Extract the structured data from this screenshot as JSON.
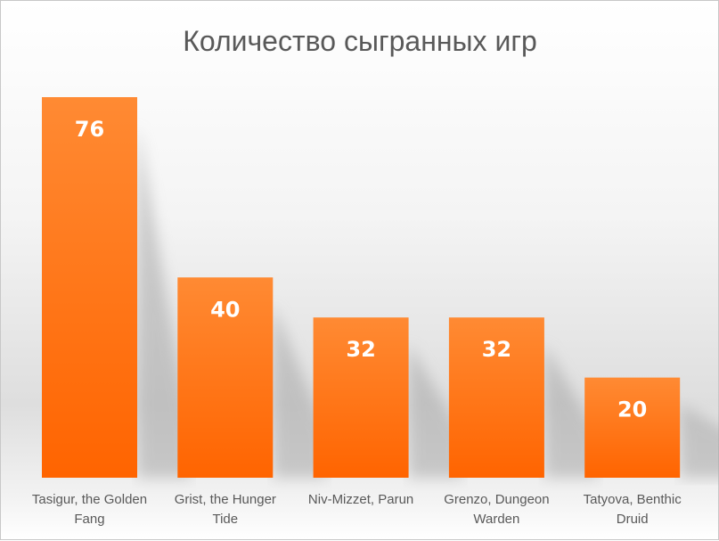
{
  "chart_data": {
    "type": "bar",
    "title": "Количество сыгранных игр",
    "categories": [
      [
        "Tasigur, the Golden",
        "Fang"
      ],
      [
        "Grist, the Hunger",
        "Tide"
      ],
      [
        "Niv-Mizzet, Parun"
      ],
      [
        "Grenzo, Dungeon",
        "Warden"
      ],
      [
        "Tatyova, Benthic",
        "Druid"
      ]
    ],
    "values": [
      76,
      40,
      32,
      32,
      20
    ],
    "data_labels": true,
    "ylim": [
      0,
      76
    ],
    "grid": false,
    "legend": "none",
    "colors": {
      "bar_top": "#ff8a33",
      "bar_bottom": "#ff6400",
      "label": "#595959"
    }
  }
}
